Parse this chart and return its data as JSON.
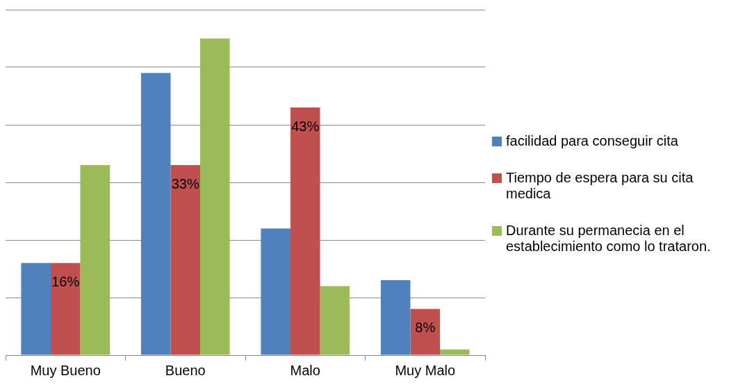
{
  "chart_data": {
    "type": "bar",
    "categories": [
      "Muy Bueno",
      "Bueno",
      "Malo",
      "Muy Malo"
    ],
    "series": [
      {
        "name": "facilidad para conseguir cita",
        "color": "#4f81bd",
        "values": [
          16,
          49,
          22,
          13
        ]
      },
      {
        "name": "Tiempo de espera para su cita medica",
        "color": "#c0504d",
        "values": [
          16,
          33,
          43,
          8
        ],
        "value_labels": [
          "16%",
          "33%",
          "43%",
          "8%"
        ]
      },
      {
        "name": "Durante su permanecia en el establecimiento como lo trataron.",
        "color": "#9bbb59",
        "values": [
          33,
          55,
          12,
          1
        ]
      }
    ],
    "ylim": [
      0,
      60
    ],
    "yticks": [
      {
        "value": 0,
        "label": null
      },
      {
        "value": 10,
        "label": null
      },
      {
        "value": 20,
        "label": null
      },
      {
        "value": 30,
        "label": null
      },
      {
        "value": 40,
        "label": null
      },
      {
        "value": 50,
        "label": null
      },
      {
        "value": 60,
        "label": null
      }
    ],
    "tick_labels": "x",
    "grid": "y",
    "legend": "right"
  }
}
